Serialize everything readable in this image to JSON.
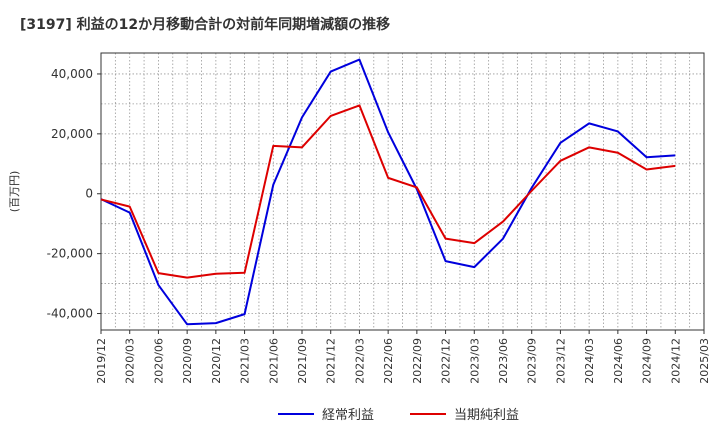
{
  "chart_data": {
    "type": "line",
    "title": "[3197]  利益の12か月移動合計の対前年同期増減額の推移",
    "xlabel": "",
    "ylabel": "(百万円)",
    "ylim": [
      -45500,
      47000
    ],
    "yticks": [
      -40000,
      -20000,
      0,
      20000,
      40000
    ],
    "ytick_labels": [
      "-40,000",
      "-20,000",
      "0",
      "20,000",
      "40,000"
    ],
    "x": [
      "2019/12",
      "2020/03",
      "2020/06",
      "2020/09",
      "2020/12",
      "2021/03",
      "2021/06",
      "2021/09",
      "2021/12",
      "2022/03",
      "2022/06",
      "2022/09",
      "2022/12",
      "2023/03",
      "2023/06",
      "2023/09",
      "2023/12",
      "2024/03",
      "2024/06",
      "2024/09",
      "2024/12",
      "2025/03"
    ],
    "grid": true,
    "legend_position": "bottom",
    "series": [
      {
        "name": "経常利益",
        "color": "#0000dd",
        "values": [
          -1800,
          -6300,
          -30500,
          -43600,
          -43200,
          -40200,
          3000,
          25500,
          40800,
          44800,
          20500,
          1500,
          -22500,
          -24500,
          -15000,
          2000,
          17000,
          23500,
          20800,
          12200,
          12800,
          null
        ]
      },
      {
        "name": "当期純利益",
        "color": "#dd0000",
        "values": [
          -1900,
          -4300,
          -26500,
          -28000,
          -26700,
          -26400,
          16000,
          15500,
          26000,
          29500,
          5300,
          2100,
          -15000,
          -16500,
          -9300,
          1000,
          11000,
          15500,
          13700,
          8100,
          9300,
          null
        ]
      }
    ]
  }
}
